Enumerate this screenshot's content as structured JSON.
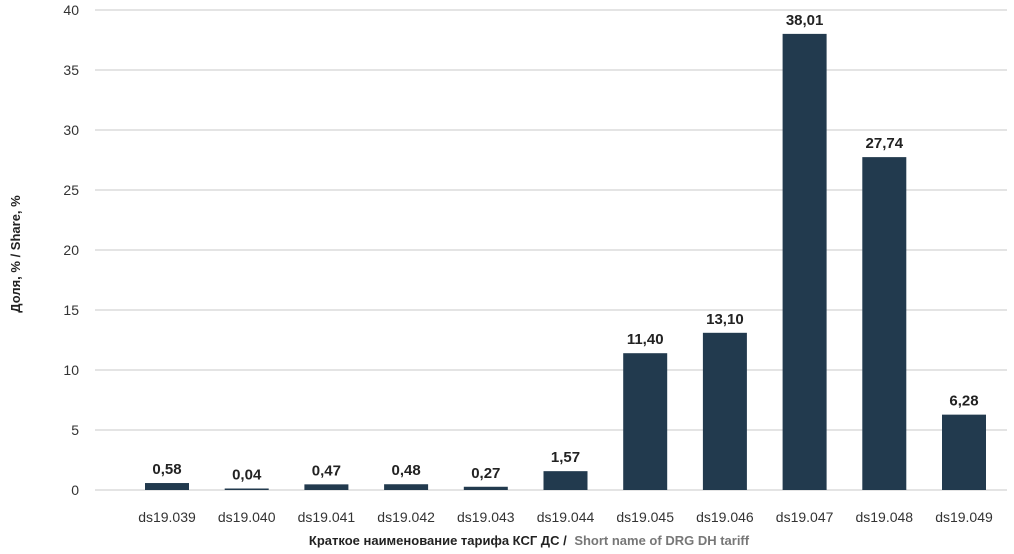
{
  "chart_data": {
    "type": "bar",
    "categories": [
      "ds19.039",
      "ds19.040",
      "ds19.041",
      "ds19.042",
      "ds19.043",
      "ds19.044",
      "ds19.045",
      "ds19.046",
      "ds19.047",
      "ds19.048",
      "ds19.049"
    ],
    "values": [
      0.58,
      0.04,
      0.47,
      0.48,
      0.27,
      1.57,
      11.4,
      13.1,
      38.01,
      27.74,
      6.28
    ],
    "data_labels": [
      "0,58",
      "0,04",
      "0,47",
      "0,48",
      "0,27",
      "1,57",
      "11,40",
      "13,10",
      "38,01",
      "27,74",
      "6,28"
    ],
    "y_ticks": [
      "0",
      "5",
      "10",
      "15",
      "20",
      "25",
      "30",
      "35",
      "40"
    ],
    "ylim": [
      0,
      40
    ],
    "grid": true,
    "xlabel": {
      "ru": "Краткое наименование тарифа КСГ ДС /",
      "en": "Short name of DRG DH tariff"
    },
    "ylabel": "Доля, % / Share, %",
    "colors": {
      "bar": "#223a4e",
      "grid": "#c8c8c8",
      "label_dark": "#222222",
      "label_grey": "#777777"
    }
  }
}
